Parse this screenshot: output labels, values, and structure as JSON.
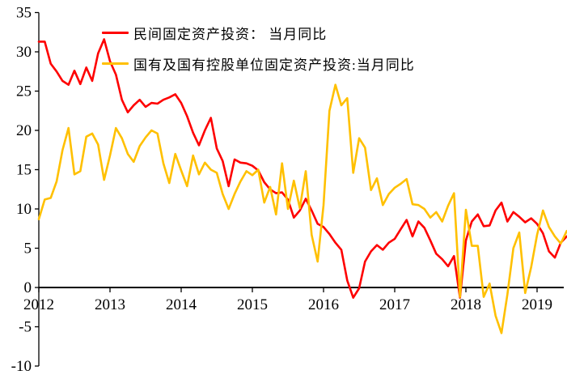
{
  "chart_data": {
    "type": "line",
    "title": "",
    "xlabel": "",
    "ylabel": "",
    "unit": "percent (YoY)",
    "x_monthly_from": "2012-01",
    "x_monthly_to": "2019-06",
    "x_tick_labels": [
      "2012",
      "2013",
      "2014",
      "2015",
      "2016",
      "2017",
      "2018",
      "2019"
    ],
    "y_ticks": [
      35,
      30,
      25,
      20,
      15,
      10,
      5,
      0,
      -5,
      -10
    ],
    "ylim": [
      -10,
      35
    ],
    "grid": false,
    "legend_position": "top-inside",
    "series": [
      {
        "name": "民间固定资产投资： 当月同比",
        "color": "#fe0000",
        "values": [
          31.3,
          31.3,
          28.5,
          27.5,
          26.3,
          25.8,
          27.6,
          25.9,
          28.0,
          26.3,
          29.8,
          31.6,
          28.8,
          27.1,
          23.9,
          22.3,
          23.2,
          23.9,
          23.0,
          23.5,
          23.4,
          23.9,
          24.2,
          24.6,
          23.5,
          21.8,
          19.7,
          18.1,
          20.0,
          21.6,
          17.7,
          16.1,
          12.9,
          16.3,
          15.9,
          15.8,
          15.5,
          14.9,
          13.4,
          12.5,
          12.0,
          12.1,
          11.2,
          8.9,
          9.8,
          11.3,
          9.8,
          8.1,
          7.7,
          6.8,
          5.7,
          4.8,
          0.9,
          -1.3,
          -0.1,
          3.3,
          4.6,
          5.4,
          4.8,
          5.7,
          6.2,
          7.4,
          8.6,
          6.5,
          8.4,
          7.6,
          6.0,
          4.3,
          3.6,
          2.7,
          4.0,
          -1.3,
          6.0,
          8.4,
          9.3,
          7.8,
          7.9,
          9.8,
          10.8,
          8.4,
          9.6,
          9.0,
          8.3,
          8.8,
          8.1,
          6.9,
          4.6,
          3.8,
          5.7,
          6.5
        ]
      },
      {
        "name": "国有及国有控股单位固定资产投资:当月同比",
        "color": "#ffc000",
        "values": [
          8.7,
          11.2,
          11.4,
          13.5,
          17.5,
          20.3,
          14.4,
          14.8,
          19.2,
          19.6,
          18.2,
          13.7,
          16.8,
          20.3,
          19.0,
          17.0,
          16.0,
          18.0,
          19.1,
          20.0,
          19.6,
          15.8,
          13.3,
          17.0,
          14.9,
          12.9,
          16.8,
          14.4,
          15.9,
          15.0,
          14.6,
          11.9,
          10.0,
          11.9,
          13.5,
          14.8,
          14.3,
          15.0,
          10.8,
          12.8,
          9.3,
          15.8,
          10.0,
          13.6,
          10.1,
          14.8,
          6.7,
          3.3,
          10.5,
          22.5,
          25.8,
          23.2,
          24.1,
          14.6,
          19.0,
          17.8,
          12.4,
          13.9,
          10.5,
          11.9,
          12.7,
          13.2,
          13.8,
          10.6,
          10.5,
          10.0,
          8.9,
          9.6,
          8.4,
          10.4,
          12.0,
          -1.2,
          9.9,
          5.3,
          5.3,
          -1.2,
          0.5,
          -3.6,
          -5.8,
          -0.9,
          5.0,
          7.0,
          -0.7,
          2.6,
          6.7,
          9.8,
          7.7,
          6.5,
          5.6,
          7.2
        ]
      }
    ]
  },
  "legend": {
    "series1": "民间固定资产投资： 当月同比",
    "series2": "国有及国有控股单位固定资产投资:当月同比"
  },
  "colors": {
    "series1": "#fe0000",
    "series2": "#ffc000",
    "axis": "#000000",
    "background": "#ffffff"
  }
}
